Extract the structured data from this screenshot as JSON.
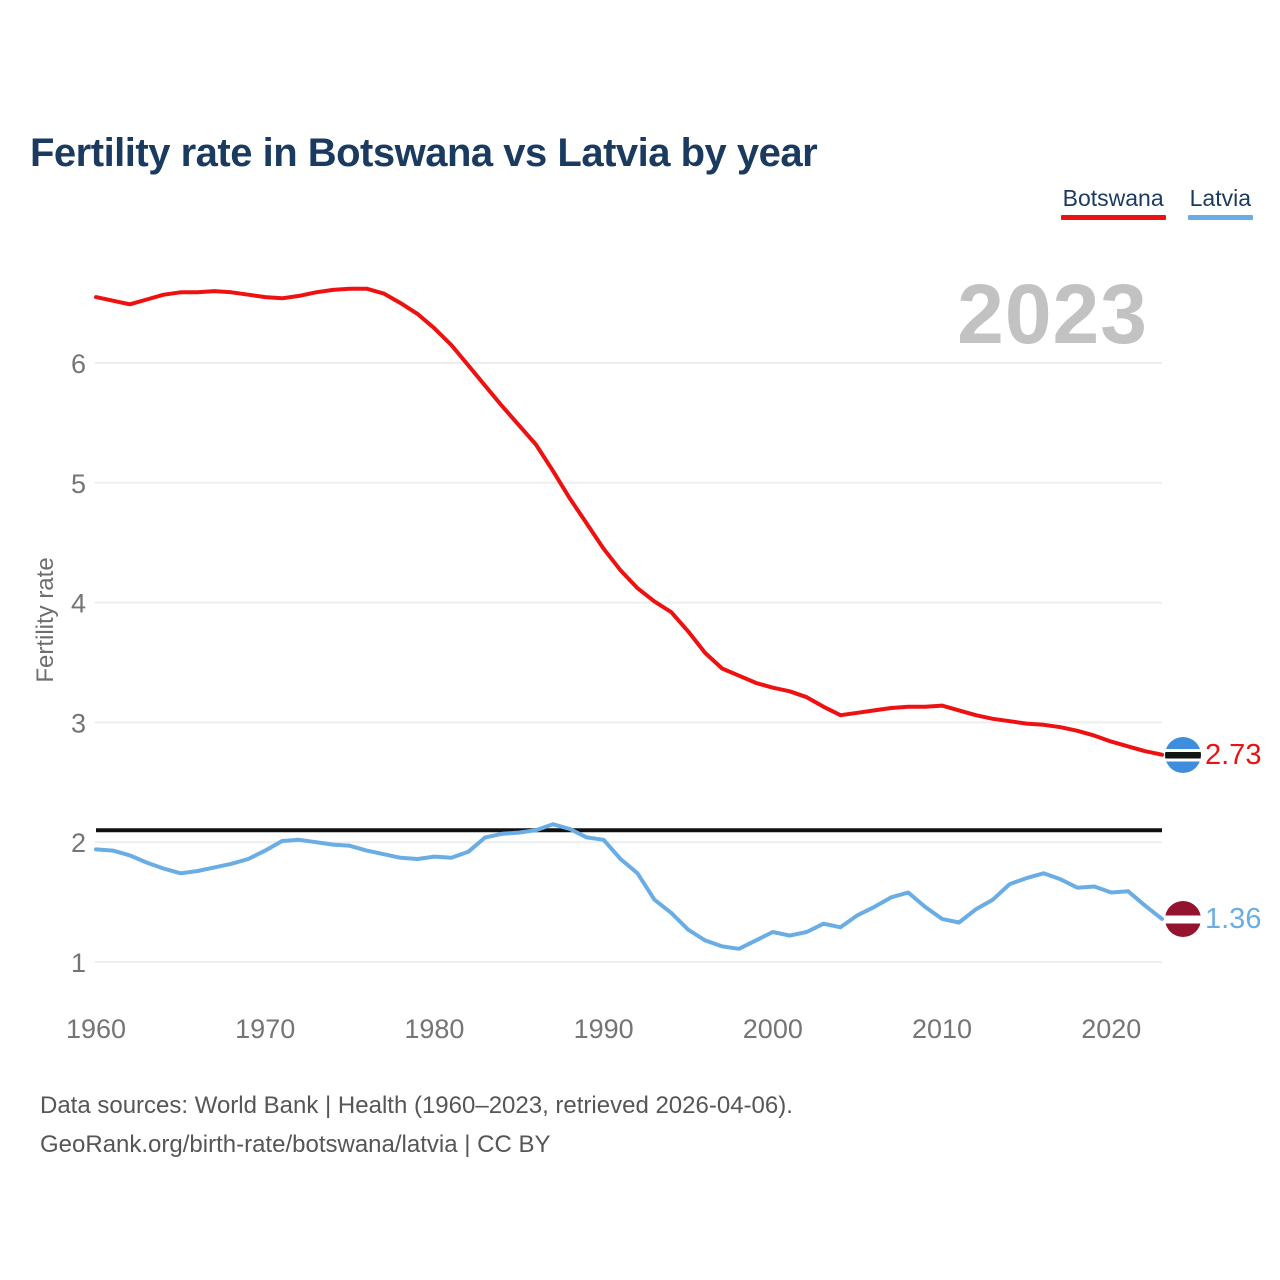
{
  "page": {
    "title": "Fertility rate in Botswana vs Latvia by year",
    "watermark_year": "2023",
    "footer": {
      "line1": "Data sources: World Bank | Health (1960–2023, retrieved 2026-04-06).",
      "line2": "GeoRank.org/birth-rate/botswana/latvia | CC BY"
    }
  },
  "legend": {
    "items": [
      {
        "label": "Botswana",
        "color": "#ee1111"
      },
      {
        "label": "Latvia",
        "color": "#6aade4"
      }
    ]
  },
  "chart_data": {
    "type": "line",
    "title": "Fertility rate in Botswana vs Latvia by year",
    "xlabel": "",
    "ylabel": "Fertility rate",
    "grid": true,
    "legend_position": "top-right",
    "xlim": [
      1960,
      2023
    ],
    "ylim": [
      0.65,
      6.9
    ],
    "x_ticks": [
      1960,
      1970,
      1980,
      1990,
      2000,
      2010,
      2020
    ],
    "y_ticks": [
      1,
      2,
      3,
      4,
      5,
      6
    ],
    "reference_line": {
      "value": 2.1,
      "color": "#111111"
    },
    "x_start": 1960,
    "x_step": 1,
    "series": [
      {
        "name": "Botswana",
        "color": "#ee1111",
        "end_label": "2.73",
        "end_marker": "botswana-flag",
        "values": [
          6.55,
          6.52,
          6.49,
          6.53,
          6.57,
          6.59,
          6.59,
          6.6,
          6.59,
          6.57,
          6.55,
          6.54,
          6.56,
          6.59,
          6.61,
          6.62,
          6.62,
          6.58,
          6.5,
          6.41,
          6.29,
          6.15,
          5.98,
          5.81,
          5.64,
          5.48,
          5.32,
          5.1,
          4.87,
          4.66,
          4.45,
          4.27,
          4.12,
          4.01,
          3.92,
          3.76,
          3.58,
          3.45,
          3.39,
          3.33,
          3.29,
          3.26,
          3.21,
          3.13,
          3.06,
          3.08,
          3.1,
          3.12,
          3.13,
          3.13,
          3.14,
          3.1,
          3.06,
          3.03,
          3.01,
          2.99,
          2.98,
          2.96,
          2.93,
          2.89,
          2.84,
          2.8,
          2.76,
          2.73
        ]
      },
      {
        "name": "Latvia",
        "color": "#6aade4",
        "end_label": "1.36",
        "end_marker": "latvia-flag",
        "values": [
          1.94,
          1.93,
          1.89,
          1.83,
          1.78,
          1.74,
          1.76,
          1.79,
          1.82,
          1.86,
          1.93,
          2.01,
          2.02,
          2.0,
          1.98,
          1.97,
          1.93,
          1.9,
          1.87,
          1.86,
          1.88,
          1.87,
          1.92,
          2.04,
          2.07,
          2.08,
          2.1,
          2.15,
          2.11,
          2.04,
          2.02,
          1.86,
          1.74,
          1.52,
          1.41,
          1.27,
          1.18,
          1.13,
          1.11,
          1.18,
          1.25,
          1.22,
          1.25,
          1.32,
          1.29,
          1.39,
          1.46,
          1.54,
          1.58,
          1.46,
          1.36,
          1.33,
          1.44,
          1.52,
          1.65,
          1.7,
          1.74,
          1.69,
          1.62,
          1.63,
          1.58,
          1.59,
          1.47,
          1.36
        ]
      }
    ]
  }
}
